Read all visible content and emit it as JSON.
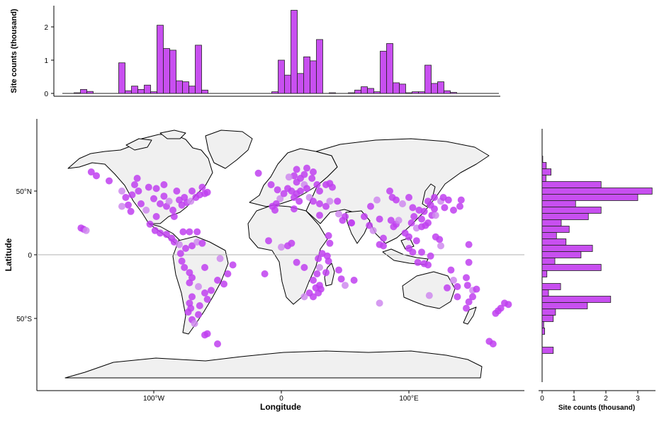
{
  "chart_data": [
    {
      "type": "bar",
      "panel": "top-histogram",
      "ylabel": "Site counts (thousand)",
      "yticks": [
        "0",
        "1",
        "2"
      ],
      "ylim": [
        0,
        2.5
      ],
      "xlim": [
        -180,
        180
      ],
      "bin_width": 5,
      "bins": [
        {
          "x": -160,
          "value": 0.02
        },
        {
          "x": -155,
          "value": 0.12
        },
        {
          "x": -150,
          "value": 0.06
        },
        {
          "x": -125,
          "value": 0.92
        },
        {
          "x": -120,
          "value": 0.08
        },
        {
          "x": -115,
          "value": 0.22
        },
        {
          "x": -110,
          "value": 0.12
        },
        {
          "x": -105,
          "value": 0.25
        },
        {
          "x": -100,
          "value": 0.05
        },
        {
          "x": -95,
          "value": 2.05
        },
        {
          "x": -90,
          "value": 1.35
        },
        {
          "x": -85,
          "value": 1.3
        },
        {
          "x": -80,
          "value": 0.38
        },
        {
          "x": -75,
          "value": 0.35
        },
        {
          "x": -70,
          "value": 0.22
        },
        {
          "x": -65,
          "value": 1.45
        },
        {
          "x": -60,
          "value": 0.1
        },
        {
          "x": -5,
          "value": 0.05
        },
        {
          "x": 0,
          "value": 1.0
        },
        {
          "x": 5,
          "value": 0.55
        },
        {
          "x": 10,
          "value": 2.5
        },
        {
          "x": 15,
          "value": 0.6
        },
        {
          "x": 20,
          "value": 1.1
        },
        {
          "x": 25,
          "value": 0.98
        },
        {
          "x": 30,
          "value": 1.62
        },
        {
          "x": 40,
          "value": 0.02
        },
        {
          "x": 55,
          "value": 0.02
        },
        {
          "x": 60,
          "value": 0.1
        },
        {
          "x": 65,
          "value": 0.2
        },
        {
          "x": 70,
          "value": 0.15
        },
        {
          "x": 75,
          "value": 0.05
        },
        {
          "x": 80,
          "value": 1.27
        },
        {
          "x": 85,
          "value": 1.5
        },
        {
          "x": 90,
          "value": 0.32
        },
        {
          "x": 95,
          "value": 0.28
        },
        {
          "x": 100,
          "value": 0.02
        },
        {
          "x": 105,
          "value": 0.05
        },
        {
          "x": 110,
          "value": 0.05
        },
        {
          "x": 115,
          "value": 0.85
        },
        {
          "x": 120,
          "value": 0.3
        },
        {
          "x": 125,
          "value": 0.35
        },
        {
          "x": 130,
          "value": 0.08
        },
        {
          "x": 135,
          "value": 0.03
        }
      ]
    },
    {
      "type": "scatter",
      "panel": "world-map",
      "xlabel": "Longitude",
      "ylabel": "Latitude",
      "xticks": [
        {
          "value": -100,
          "label": "100°W"
        },
        {
          "value": 0,
          "label": "0"
        },
        {
          "value": 100,
          "label": "100°E"
        }
      ],
      "yticks": [
        {
          "value": 50,
          "label": "50°N"
        },
        {
          "value": 0,
          "label": "0"
        },
        {
          "value": -50,
          "label": "50°S"
        }
      ],
      "xlim": [
        -180,
        180
      ],
      "ylim": [
        -85,
        85
      ],
      "equator": true,
      "points": [
        [
          -149,
          65
        ],
        [
          -145,
          62
        ],
        [
          -135,
          58
        ],
        [
          -125,
          50
        ],
        [
          -122,
          45
        ],
        [
          -120,
          39
        ],
        [
          -118,
          34
        ],
        [
          -117,
          47
        ],
        [
          -112,
          50
        ],
        [
          -110,
          40
        ],
        [
          -106,
          35
        ],
        [
          -104,
          53
        ],
        [
          -100,
          44
        ],
        [
          -98,
          30
        ],
        [
          -95,
          40
        ],
        [
          -92,
          46
        ],
        [
          -90,
          38
        ],
        [
          -88,
          42
        ],
        [
          -85,
          35
        ],
        [
          -84,
          30
        ],
        [
          -80,
          43
        ],
        [
          -78,
          39
        ],
        [
          -76,
          45
        ],
        [
          -74,
          41
        ],
        [
          -71,
          42
        ],
        [
          -67,
          45
        ],
        [
          -64,
          47
        ],
        [
          -60,
          48
        ],
        [
          -58,
          49
        ],
        [
          -113,
          60
        ],
        [
          -115,
          55
        ],
        [
          -125,
          38
        ],
        [
          -98,
          52
        ],
        [
          -82,
          50
        ],
        [
          -70,
          50
        ],
        [
          -92,
          55
        ],
        [
          -155,
          20
        ],
        [
          -157,
          21
        ],
        [
          -153,
          19
        ],
        [
          -103,
          24
        ],
        [
          -99,
          19
        ],
        [
          -95,
          17
        ],
        [
          -90,
          16
        ],
        [
          -86,
          13
        ],
        [
          -84,
          10
        ],
        [
          -80,
          8
        ],
        [
          -77,
          18
        ],
        [
          -72,
          18
        ],
        [
          -66,
          18
        ],
        [
          -79,
          1
        ],
        [
          -75,
          5
        ],
        [
          -70,
          7
        ],
        [
          -66,
          10
        ],
        [
          -62,
          9
        ],
        [
          -78,
          -5
        ],
        [
          -76,
          -10
        ],
        [
          -72,
          -14
        ],
        [
          -70,
          -18
        ],
        [
          -72,
          -22
        ],
        [
          -65,
          -25
        ],
        [
          -60,
          -30
        ],
        [
          -55,
          -28
        ],
        [
          -50,
          -20
        ],
        [
          -45,
          -23
        ],
        [
          -42,
          -15
        ],
        [
          -38,
          -8
        ],
        [
          -48,
          -3
        ],
        [
          -60,
          -10
        ],
        [
          -70,
          -33
        ],
        [
          -72,
          -38
        ],
        [
          -71,
          -42
        ],
        [
          -73,
          -45
        ],
        [
          -70,
          -51
        ],
        [
          -68,
          -54
        ],
        [
          -58,
          -35
        ],
        [
          -64,
          -40
        ],
        [
          -65,
          -47
        ],
        [
          -18,
          64
        ],
        [
          -8,
          55
        ],
        [
          -3,
          51
        ],
        [
          -1,
          44
        ],
        [
          2,
          48
        ],
        [
          5,
          52
        ],
        [
          8,
          50
        ],
        [
          10,
          45
        ],
        [
          12,
          48
        ],
        [
          15,
          50
        ],
        [
          18,
          55
        ],
        [
          20,
          52
        ],
        [
          12,
          57
        ],
        [
          15,
          60
        ],
        [
          18,
          63
        ],
        [
          25,
          65
        ],
        [
          10,
          62
        ],
        [
          6,
          61
        ],
        [
          24,
          60
        ],
        [
          28,
          55
        ],
        [
          30,
          50
        ],
        [
          35,
          55
        ],
        [
          38,
          56
        ],
        [
          40,
          53
        ],
        [
          22,
          45
        ],
        [
          25,
          42
        ],
        [
          14,
          42
        ],
        [
          -4,
          40
        ],
        [
          -7,
          38
        ],
        [
          30,
          40
        ],
        [
          35,
          38
        ],
        [
          38,
          42
        ],
        [
          44,
          42
        ],
        [
          12,
          67
        ],
        [
          20,
          68
        ],
        [
          -5,
          35
        ],
        [
          10,
          36
        ],
        [
          30,
          31
        ],
        [
          45,
          32
        ],
        [
          50,
          30
        ],
        [
          55,
          25
        ],
        [
          48,
          27
        ],
        [
          37,
          15
        ],
        [
          38,
          9
        ],
        [
          -10,
          11
        ],
        [
          0,
          6
        ],
        [
          5,
          7
        ],
        [
          8,
          9
        ],
        [
          32,
          1
        ],
        [
          36,
          -1
        ],
        [
          37,
          -5
        ],
        [
          29,
          -3
        ],
        [
          30,
          -10
        ],
        [
          35,
          -14
        ],
        [
          28,
          -15
        ],
        [
          25,
          -20
        ],
        [
          30,
          -24
        ],
        [
          27,
          -26
        ],
        [
          22,
          -30
        ],
        [
          18,
          -33
        ],
        [
          25,
          -33
        ],
        [
          29,
          -30
        ],
        [
          31,
          -27
        ],
        [
          47,
          -19
        ],
        [
          57,
          -20
        ],
        [
          45,
          -12
        ],
        [
          50,
          -24
        ],
        [
          12,
          -6
        ],
        [
          18,
          -10
        ],
        [
          55,
          25
        ],
        [
          65,
          30
        ],
        [
          70,
          38
        ],
        [
          69,
          23
        ],
        [
          72,
          19
        ],
        [
          77,
          28
        ],
        [
          80,
          13
        ],
        [
          77,
          8
        ],
        [
          88,
          22
        ],
        [
          80,
          7
        ],
        [
          90,
          24
        ],
        [
          92,
          27
        ],
        [
          86,
          27
        ],
        [
          97,
          17
        ],
        [
          100,
          14
        ],
        [
          103,
          2
        ],
        [
          100,
          5
        ],
        [
          106,
          11
        ],
        [
          106,
          21
        ],
        [
          110,
          22
        ],
        [
          113,
          23
        ],
        [
          115,
          25
        ],
        [
          118,
          31
        ],
        [
          112,
          34
        ],
        [
          117,
          39
        ],
        [
          121,
          31
        ],
        [
          104,
          30
        ],
        [
          108,
          35
        ],
        [
          103,
          37
        ],
        [
          102,
          25
        ],
        [
          110,
          28
        ],
        [
          120,
          36
        ],
        [
          125,
          42
        ],
        [
          128,
          37
        ],
        [
          127,
          45
        ],
        [
          131,
          43
        ],
        [
          135,
          35
        ],
        [
          140,
          38
        ],
        [
          141,
          43
        ],
        [
          95,
          40
        ],
        [
          90,
          43
        ],
        [
          87,
          45
        ],
        [
          120,
          45
        ],
        [
          115,
          42
        ],
        [
          100,
          45
        ],
        [
          85,
          50
        ],
        [
          75,
          43
        ],
        [
          107,
          -6
        ],
        [
          112,
          -7
        ],
        [
          115,
          -8
        ],
        [
          117,
          -1
        ],
        [
          124,
          12
        ],
        [
          121,
          14
        ],
        [
          125,
          7
        ],
        [
          110,
          2
        ],
        [
          147,
          8
        ],
        [
          -62,
          53
        ],
        [
          147,
          -6
        ],
        [
          145,
          -18
        ],
        [
          146,
          -24
        ],
        [
          150,
          -28
        ],
        [
          153,
          -27
        ],
        [
          150,
          -33
        ],
        [
          147,
          -37
        ],
        [
          145,
          -42
        ],
        [
          138,
          -33
        ],
        [
          130,
          -26
        ],
        [
          116,
          -32
        ],
        [
          133,
          -12
        ],
        [
          175,
          -38
        ],
        [
          172,
          -42
        ],
        [
          168,
          -46
        ],
        [
          170,
          -44
        ],
        [
          178,
          -39
        ],
        [
          135,
          -20
        ],
        [
          138,
          -25
        ],
        [
          -60,
          -63
        ],
        [
          -58,
          -62
        ],
        [
          163,
          -68
        ],
        [
          166,
          -70
        ],
        [
          -13,
          -15
        ],
        [
          77,
          -38
        ],
        [
          -50,
          -70
        ]
      ]
    },
    {
      "type": "bar",
      "panel": "right-histogram",
      "orientation": "horizontal",
      "xlabel": "Site counts (thousand)",
      "xticks": [
        "0",
        "1",
        "2",
        "3"
      ],
      "xlim": [
        -0.1,
        3.6
      ],
      "ylim": [
        -85,
        85
      ],
      "bin_width": 5,
      "bins": [
        {
          "y": 75,
          "value": 0.02
        },
        {
          "y": 70,
          "value": 0.13
        },
        {
          "y": 65,
          "value": 0.28
        },
        {
          "y": 60,
          "value": 0.12
        },
        {
          "y": 55,
          "value": 1.85
        },
        {
          "y": 50,
          "value": 3.45
        },
        {
          "y": 45,
          "value": 3.0
        },
        {
          "y": 40,
          "value": 1.05
        },
        {
          "y": 35,
          "value": 1.85
        },
        {
          "y": 30,
          "value": 1.45
        },
        {
          "y": 25,
          "value": 0.6
        },
        {
          "y": 20,
          "value": 0.85
        },
        {
          "y": 15,
          "value": 0.45
        },
        {
          "y": 10,
          "value": 0.75
        },
        {
          "y": 5,
          "value": 1.58
        },
        {
          "y": 0,
          "value": 1.22
        },
        {
          "y": -5,
          "value": 0.4
        },
        {
          "y": -10,
          "value": 1.85
        },
        {
          "y": -15,
          "value": 0.15
        },
        {
          "y": -25,
          "value": 0.58
        },
        {
          "y": -30,
          "value": 0.2
        },
        {
          "y": -35,
          "value": 2.15
        },
        {
          "y": -40,
          "value": 1.42
        },
        {
          "y": -45,
          "value": 0.42
        },
        {
          "y": -50,
          "value": 0.35
        },
        {
          "y": -55,
          "value": 0.05
        },
        {
          "y": -60,
          "value": 0.08
        },
        {
          "y": -75,
          "value": 0.35
        }
      ]
    }
  ],
  "colors": {
    "point": "#bf3ff0",
    "point_light": "#cf8aee",
    "bar_fill": "#c84ff0",
    "bar_stroke": "#222222",
    "land": "#f0f0f0",
    "coast": "#000000",
    "axis": "#000000",
    "equator": "#b0b0b0"
  }
}
